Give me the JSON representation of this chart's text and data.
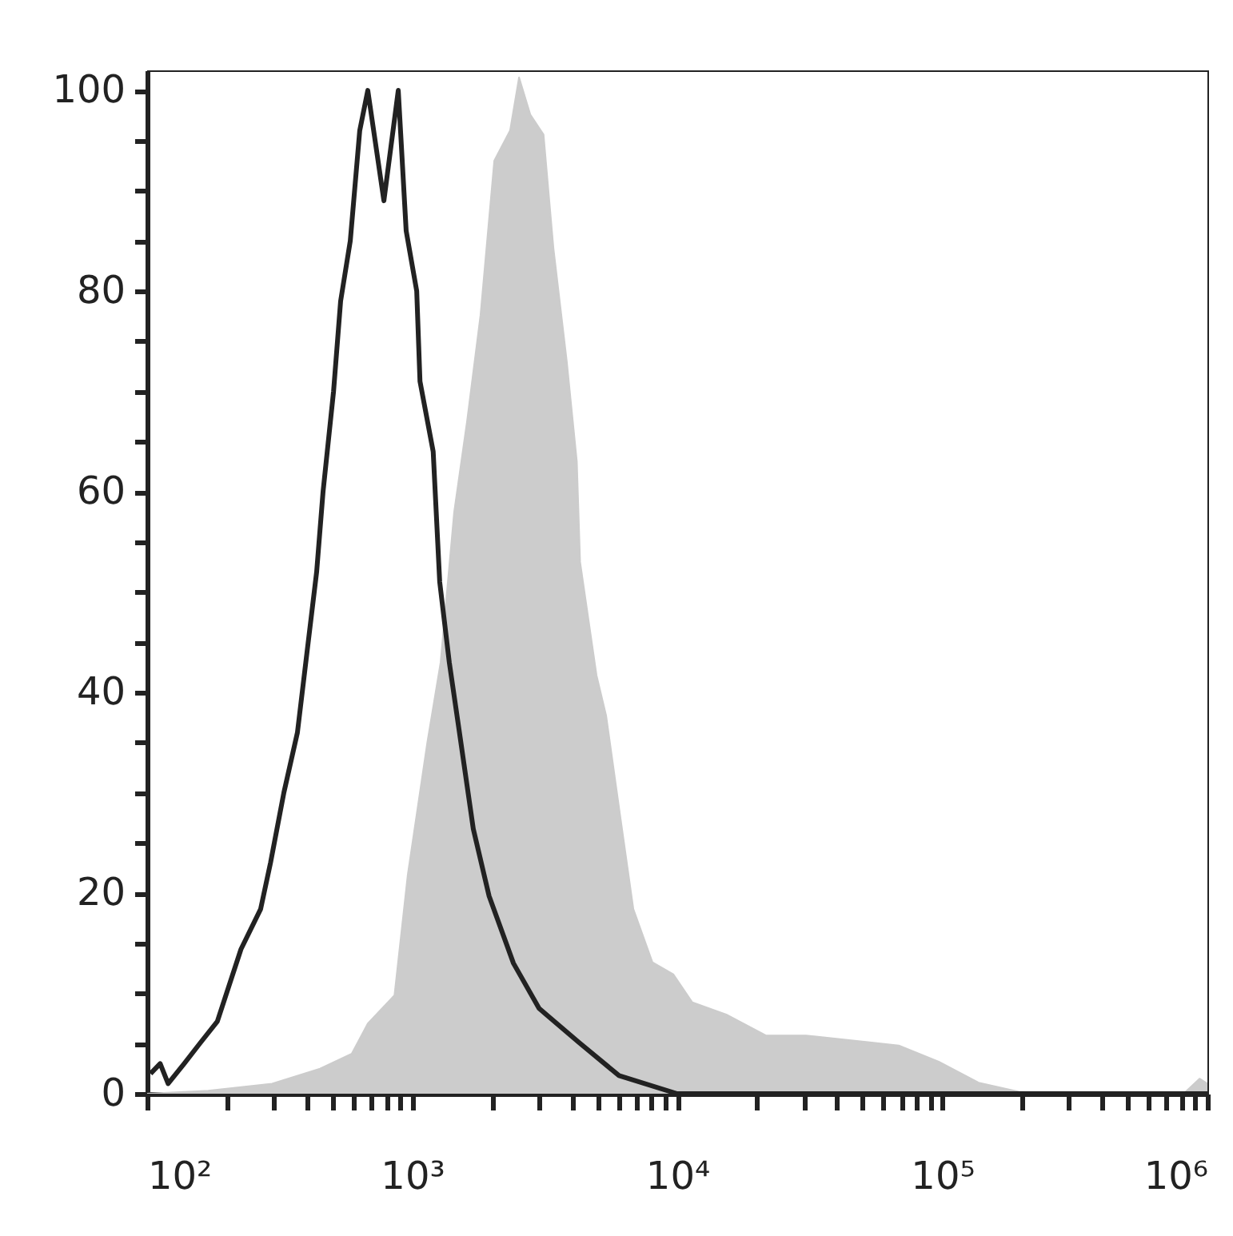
{
  "chart_data": {
    "type": "line",
    "log": "x",
    "xlim": [
      100,
      1000000
    ],
    "ylim": [
      0,
      102
    ],
    "xticks": [
      {
        "value": 100,
        "label": "10²"
      },
      {
        "value": 200,
        "label": null
      },
      {
        "value": 300,
        "label": null
      },
      {
        "value": 400,
        "label": null
      },
      {
        "value": 500,
        "label": null
      },
      {
        "value": 600,
        "label": null
      },
      {
        "value": 700,
        "label": null
      },
      {
        "value": 800,
        "label": null
      },
      {
        "value": 900,
        "label": null
      },
      {
        "value": 1000,
        "label": "10³"
      },
      {
        "value": 2000,
        "label": null
      },
      {
        "value": 3000,
        "label": null
      },
      {
        "value": 4000,
        "label": null
      },
      {
        "value": 5000,
        "label": null
      },
      {
        "value": 6000,
        "label": null
      },
      {
        "value": 7000,
        "label": null
      },
      {
        "value": 8000,
        "label": null
      },
      {
        "value": 9000,
        "label": null
      },
      {
        "value": 10000,
        "label": "10⁴"
      },
      {
        "value": 20000,
        "label": null
      },
      {
        "value": 30000,
        "label": null
      },
      {
        "value": 40000,
        "label": null
      },
      {
        "value": 50000,
        "label": null
      },
      {
        "value": 60000,
        "label": null
      },
      {
        "value": 70000,
        "label": null
      },
      {
        "value": 80000,
        "label": null
      },
      {
        "value": 90000,
        "label": null
      },
      {
        "value": 100000,
        "label": "10⁵"
      },
      {
        "value": 200000,
        "label": null
      },
      {
        "value": 300000,
        "label": null
      },
      {
        "value": 400000,
        "label": null
      },
      {
        "value": 500000,
        "label": null
      },
      {
        "value": 600000,
        "label": null
      },
      {
        "value": 700000,
        "label": null
      },
      {
        "value": 800000,
        "label": null
      },
      {
        "value": 900000,
        "label": null
      },
      {
        "value": 1000000,
        "label": "10⁶"
      }
    ],
    "yticks": [
      0,
      {
        "value": 5,
        "label": null
      },
      {
        "value": 10,
        "label": null
      },
      {
        "value": 15,
        "label": null
      },
      20,
      {
        "value": 25,
        "label": null
      },
      {
        "value": 30,
        "label": null
      },
      {
        "value": 35,
        "label": null
      },
      40,
      {
        "value": 45,
        "label": null
      },
      {
        "value": 50,
        "label": null
      },
      {
        "value": 55,
        "label": null
      },
      60,
      {
        "value": 65,
        "label": null
      },
      {
        "value": 70,
        "label": null
      },
      {
        "value": 75,
        "label": null
      },
      80,
      {
        "value": 85,
        "label": null
      },
      {
        "value": 90,
        "label": null
      },
      {
        "value": 95,
        "label": null
      },
      100
    ],
    "grid": false,
    "marker": "none",
    "line_style": "solid",
    "series": [
      {
        "type": "area",
        "color": "#cccccc",
        "x": [
          100,
          170,
          296,
          449,
          592,
          680,
          857,
          962,
          1140,
          1280,
          1440,
          1610,
          1810,
          2040,
          2340,
          2530,
          2790,
          3130,
          3410,
          3830,
          4180,
          4300,
          4960,
          5390,
          6090,
          6830,
          8060,
          9660,
          11400,
          15300,
          21600,
          30600,
          54100,
          68500,
          96900,
          137000,
          194000,
          257000,
          813000,
          934000,
          1000000
        ],
        "values": [
          0,
          0.3,
          1,
          2.5,
          4,
          7,
          9.8,
          21.8,
          35,
          43,
          58,
          67,
          77.6,
          93,
          96,
          101.3,
          97.6,
          95.6,
          84.3,
          73,
          63,
          53,
          41.7,
          37.7,
          27.7,
          18.4,
          13.1,
          11.9,
          9.1,
          7.9,
          5.8,
          5.8,
          5.1,
          4.8,
          3.2,
          1.1,
          0.2,
          0,
          0,
          1.5,
          1
        ]
      },
      {
        "color": "#222222",
        "x": [
          103,
          112,
          120,
          138,
          158,
          184,
          226,
          268,
          292,
          328,
          369,
          401,
          436,
          461,
          505,
          537,
          584,
          634,
          680,
          782,
          886,
          949,
          1040,
          1070,
          1200,
          1270,
          1380,
          1500,
          1700,
          1950,
          2410,
          3010,
          4260,
          6030,
          10000,
          1000000
        ],
        "values": [
          2,
          3,
          1,
          3,
          5,
          7.2,
          14.4,
          18.4,
          23,
          30,
          36,
          44,
          52,
          60,
          70,
          79,
          85,
          96,
          100,
          89,
          100,
          86,
          80,
          71,
          64,
          51,
          43,
          36.4,
          26.4,
          19.7,
          13,
          8.5,
          5.1,
          1.8,
          0,
          0
        ]
      }
    ]
  }
}
